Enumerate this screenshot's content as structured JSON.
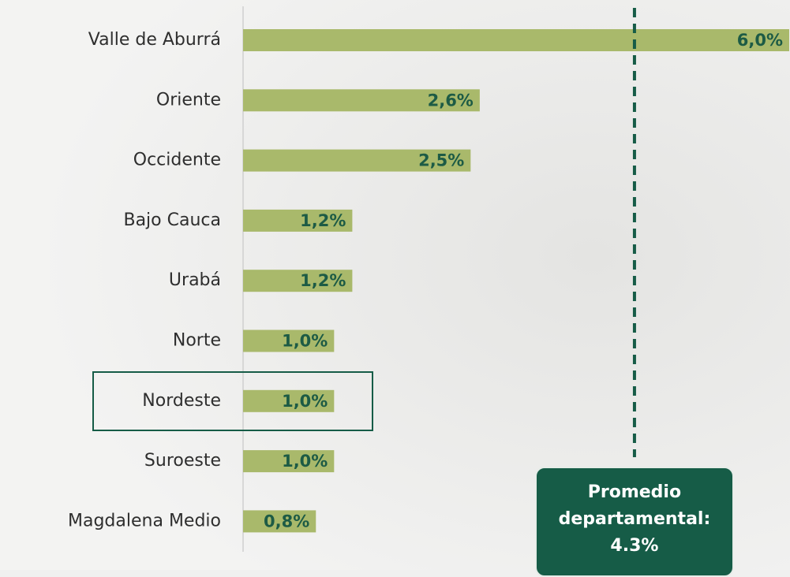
{
  "chart_data": {
    "type": "bar",
    "orientation": "horizontal",
    "categories": [
      "Valle de Aburrá",
      "Oriente",
      "Occidente",
      "Bajo Cauca",
      "Urabá",
      "Norte",
      "Nordeste",
      "Suroeste",
      "Magdalena Medio"
    ],
    "values": [
      6.0,
      2.6,
      2.5,
      1.2,
      1.2,
      1.0,
      1.0,
      1.0,
      0.8
    ],
    "value_labels": [
      "6,0%",
      "2,6%",
      "2,5%",
      "1,2%",
      "1,2%",
      "1,0%",
      "1,0%",
      "1,0%",
      "0,8%"
    ],
    "color": "#a9b96b",
    "xlim": [
      0,
      6.0
    ],
    "reference_line": {
      "value": 4.3,
      "label": "Promedio departamental: 4.3%",
      "color": "#165c47"
    }
  }
}
